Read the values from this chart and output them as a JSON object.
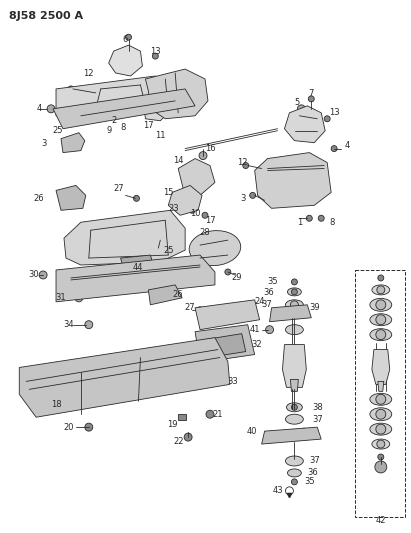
{
  "title": "8J58 2500 A",
  "bg_color": "#ffffff",
  "fg_color": "#2a2a2a",
  "title_fontsize": 8,
  "label_fontsize": 6,
  "fig_width": 4.11,
  "fig_height": 5.33,
  "dpi": 100
}
